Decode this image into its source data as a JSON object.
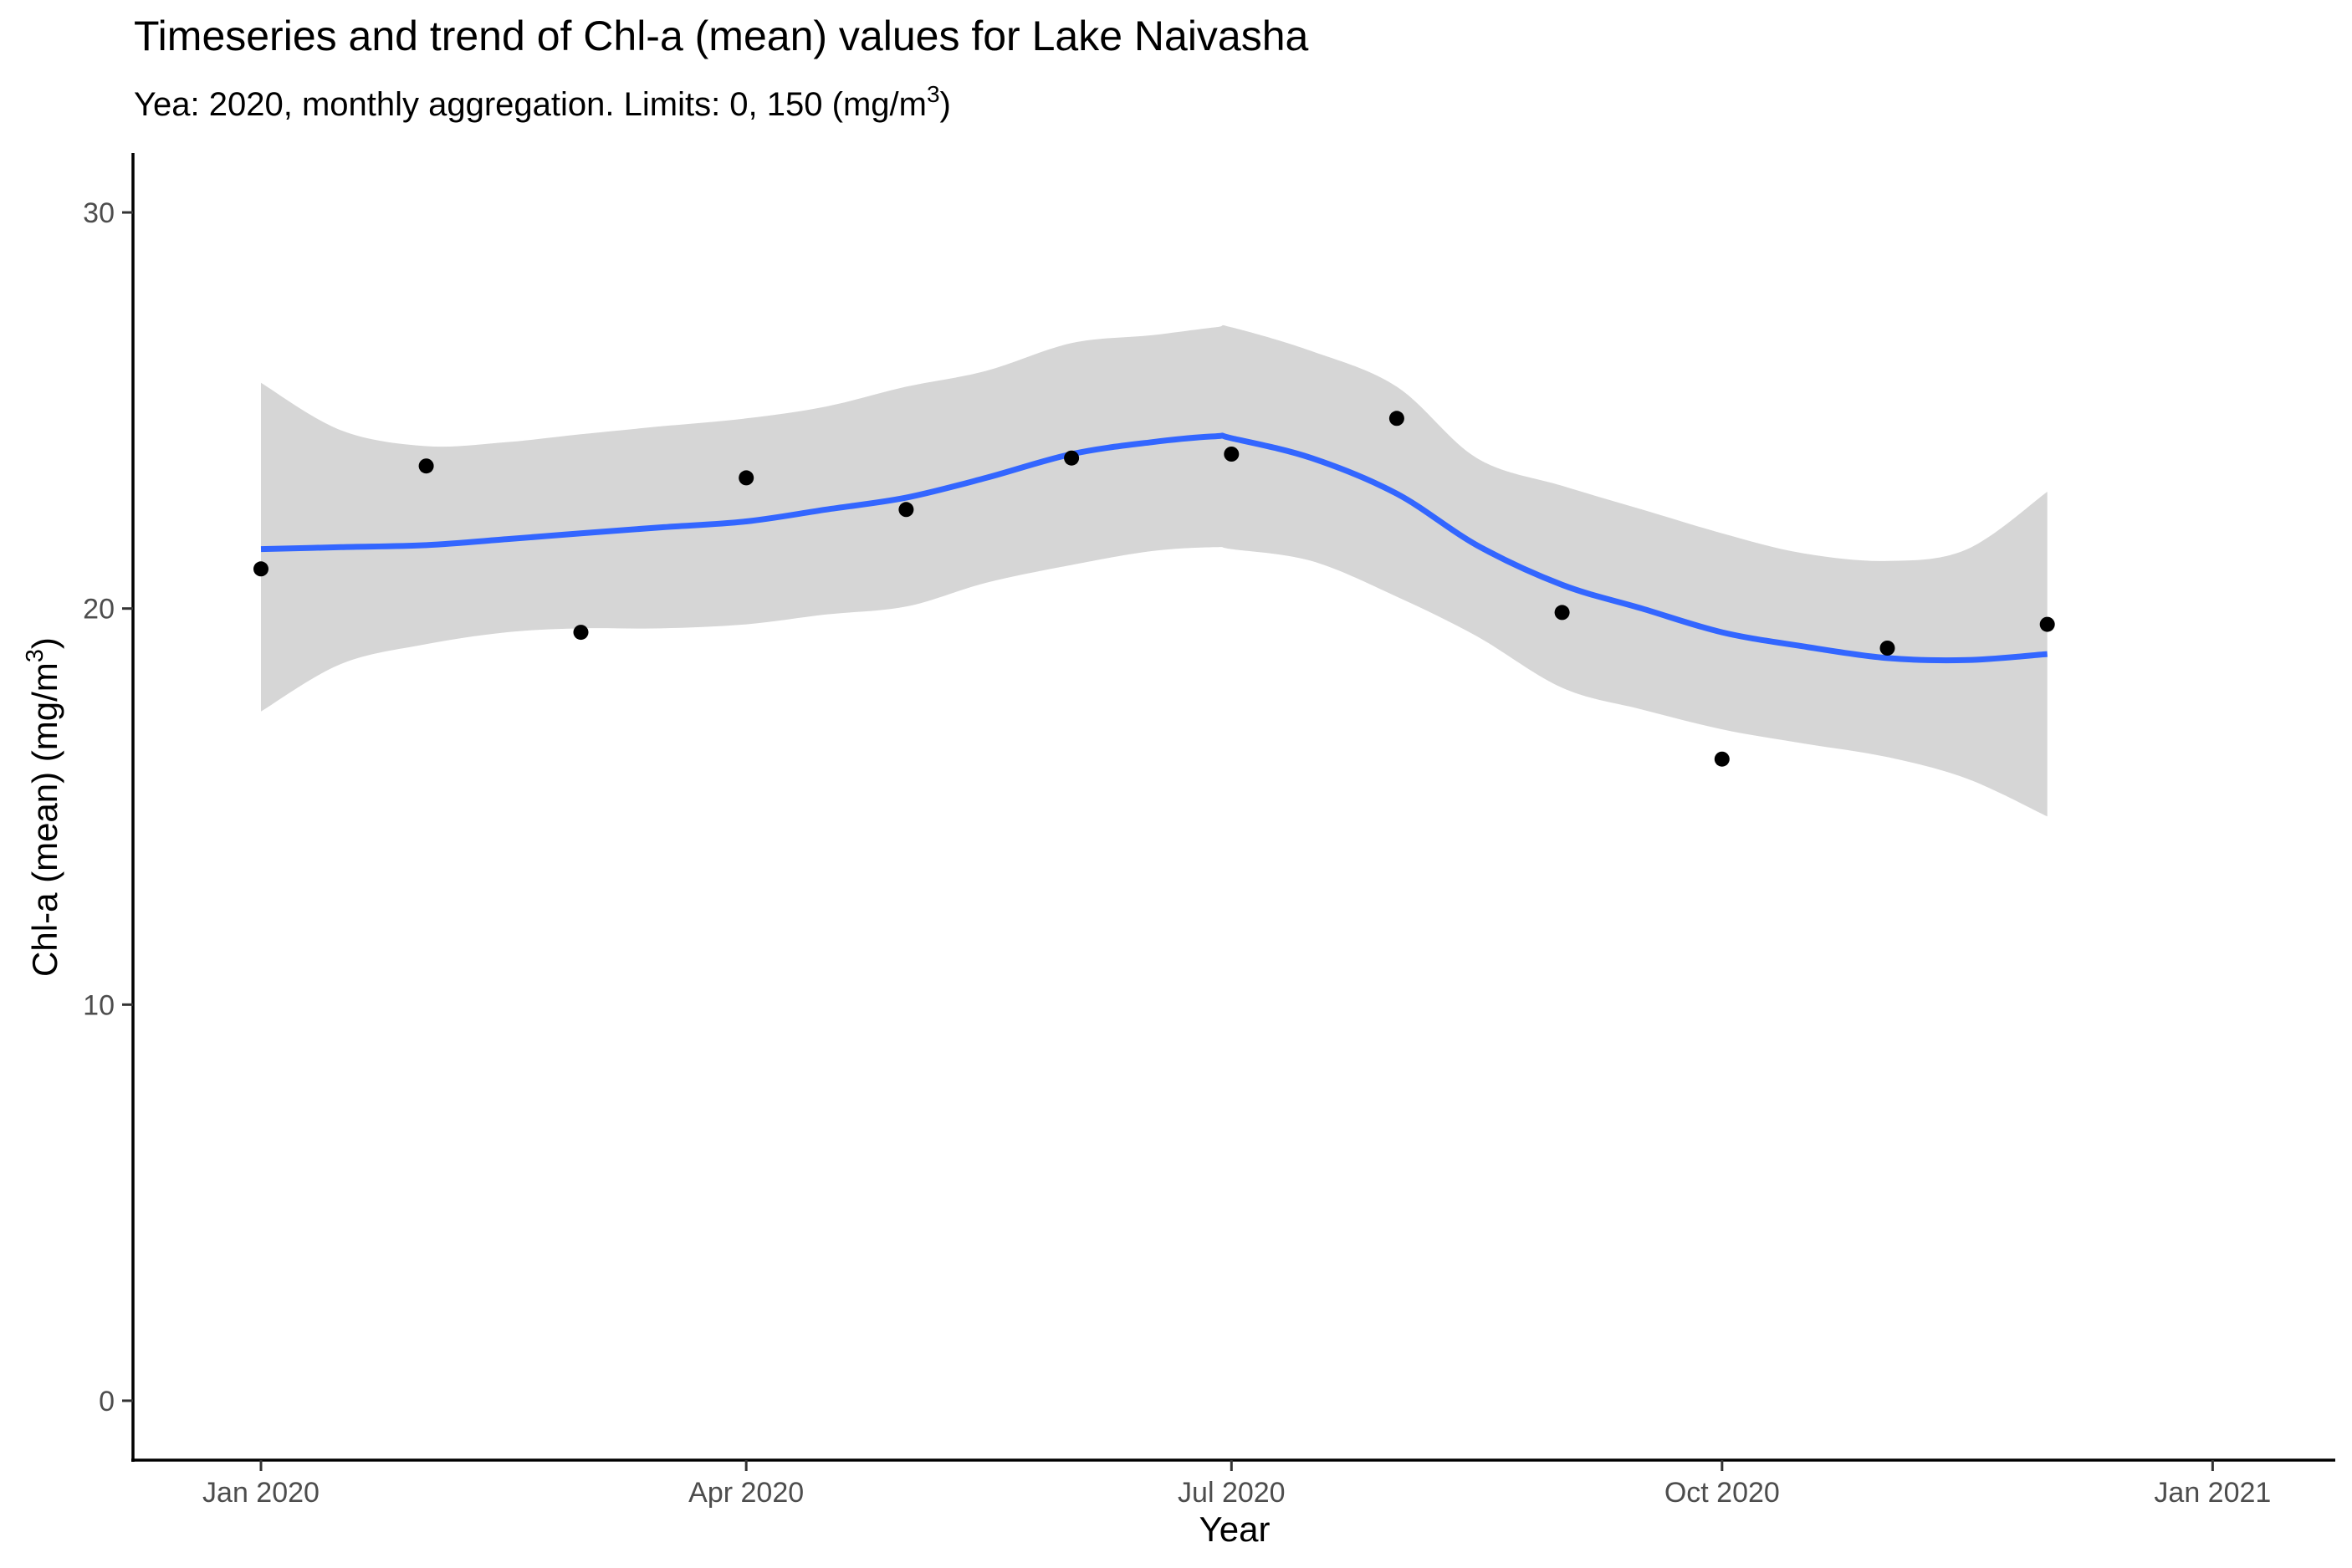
{
  "chart_data": {
    "type": "line",
    "title": "Timeseries and trend of Chl-a (mean) values for Lake Naivasha",
    "subtitle": {
      "prefix": "Yea: 2020, monthly aggregation. Limits: 0, 150 ",
      "unit_base": "mg/m",
      "unit_sup": "3"
    },
    "xlabel": "Year",
    "ylabel": {
      "prefix": "Chl-a (mean) ",
      "unit_base": "mg/m",
      "unit_sup": "3"
    },
    "xlim": [
      "2019-12-08",
      "2021-01-24"
    ],
    "ylim": [
      -1.5,
      31.5
    ],
    "x_ticks": [
      {
        "date": "2020-01-01",
        "label": "Jan 2020"
      },
      {
        "date": "2020-04-01",
        "label": "Apr 2020"
      },
      {
        "date": "2020-07-01",
        "label": "Jul 2020"
      },
      {
        "date": "2020-10-01",
        "label": "Oct 2020"
      },
      {
        "date": "2021-01-01",
        "label": "Jan 2021"
      }
    ],
    "y_ticks": [
      0,
      10,
      20,
      30
    ],
    "grid": false,
    "legend": "none",
    "points": {
      "name": "Chl-a (mean)",
      "color": "#000000",
      "x": [
        "2020-01-01",
        "2020-02-01",
        "2020-03-01",
        "2020-04-01",
        "2020-05-01",
        "2020-06-01",
        "2020-07-01",
        "2020-08-01",
        "2020-09-01",
        "2020-10-01",
        "2020-11-01",
        "2020-12-01"
      ],
      "y": [
        21.0,
        23.6,
        19.4,
        23.3,
        22.5,
        23.8,
        23.9,
        24.8,
        19.9,
        16.2,
        19.0,
        19.6
      ]
    },
    "trend": {
      "name": "trend",
      "color": "#3366ff",
      "band_color": "#d6d6d6",
      "x": [
        "2020-01-01",
        "2020-01-16",
        "2020-02-01",
        "2020-02-16",
        "2020-03-01",
        "2020-03-16",
        "2020-04-01",
        "2020-04-16",
        "2020-05-01",
        "2020-05-16",
        "2020-06-01",
        "2020-06-16",
        "2020-06-28",
        "2020-07-01",
        "2020-07-16",
        "2020-08-01",
        "2020-08-16",
        "2020-09-01",
        "2020-09-16",
        "2020-10-01",
        "2020-10-16",
        "2020-11-01",
        "2020-11-16",
        "2020-12-01"
      ],
      "y": [
        21.5,
        21.55,
        21.6,
        21.75,
        21.9,
        22.05,
        22.2,
        22.5,
        22.8,
        23.3,
        23.9,
        24.2,
        24.35,
        24.3,
        23.8,
        22.9,
        21.6,
        20.6,
        20.0,
        19.4,
        19.05,
        18.75,
        18.7,
        18.85
      ],
      "lower": [
        17.4,
        18.6,
        19.1,
        19.4,
        19.5,
        19.5,
        19.6,
        19.85,
        20.05,
        20.65,
        21.1,
        21.45,
        21.55,
        21.5,
        21.2,
        20.3,
        19.3,
        18.0,
        17.45,
        16.95,
        16.6,
        16.25,
        15.7,
        14.75
      ],
      "upper": [
        25.7,
        24.5,
        24.1,
        24.2,
        24.4,
        24.6,
        24.8,
        25.1,
        25.6,
        26.0,
        26.7,
        26.9,
        27.1,
        27.1,
        26.5,
        25.6,
        23.8,
        23.1,
        22.5,
        21.9,
        21.4,
        21.2,
        21.5,
        22.95
      ]
    }
  }
}
